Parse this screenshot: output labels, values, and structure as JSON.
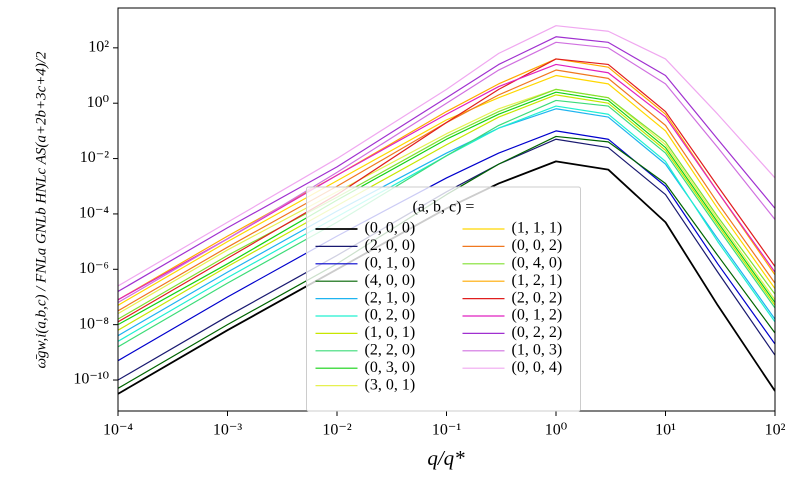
{
  "chart_data": {
    "type": "line",
    "xlabel": "q/q*",
    "ylabel": "ω̄gw,i(a,b,c) / FNLa GNLb HNLc AS(a+2b+3c+4)/2",
    "legend_title": "(a, b, c) =",
    "legend": "lower center",
    "xscale": "log",
    "yscale": "log",
    "xlim": [
      0.0001,
      100
    ],
    "ylim": [
      7.6e-12,
      2750
    ],
    "xticks": [
      {
        "value": 0.0001,
        "label": "10⁻⁴"
      },
      {
        "value": 0.001,
        "label": "10⁻³"
      },
      {
        "value": 0.01,
        "label": "10⁻²"
      },
      {
        "value": 0.1,
        "label": "10⁻¹"
      },
      {
        "value": 1,
        "label": "10⁰"
      },
      {
        "value": 10,
        "label": "10¹"
      },
      {
        "value": 100,
        "label": "10²"
      }
    ],
    "yticks": [
      {
        "value": 1e-10,
        "label": "10⁻¹⁰"
      },
      {
        "value": 1e-08,
        "label": "10⁻⁸"
      },
      {
        "value": 1e-06,
        "label": "10⁻⁶"
      },
      {
        "value": 0.0001,
        "label": "10⁻⁴"
      },
      {
        "value": 0.01,
        "label": "10⁻²"
      },
      {
        "value": 1,
        "label": "10⁰"
      },
      {
        "value": 100,
        "label": "10²"
      }
    ],
    "x": [
      0.0001,
      0.001,
      0.01,
      0.1,
      0.3,
      1,
      3,
      10,
      30,
      100
    ],
    "series": [
      {
        "name": "(0, 0, 0)",
        "color": "#000000",
        "values": [
          3.16e-11,
          6.3e-09,
          1e-06,
          0.000158,
          0.00126,
          0.0079,
          0.004,
          5e-05,
          5e-08,
          4e-11
        ]
      },
      {
        "name": "(2, 0, 0)",
        "color": "#191970",
        "values": [
          1e-10,
          2e-08,
          3.16e-06,
          0.00063,
          0.0063,
          0.05,
          0.025,
          0.0005,
          7.9e-07,
          7.9e-10
        ]
      },
      {
        "name": "(0, 1, 0)",
        "color": "#0000cd",
        "values": [
          5e-10,
          1e-07,
          1.58e-05,
          0.002,
          0.0158,
          0.1,
          0.05,
          0.001,
          1.58e-06,
          2e-09
        ]
      },
      {
        "name": "(4, 0, 0)",
        "color": "#006400",
        "values": [
          5e-11,
          1e-08,
          1.58e-06,
          0.0005,
          0.0063,
          0.063,
          0.04,
          0.00126,
          3.16e-06,
          5e-09
        ]
      },
      {
        "name": "(2, 1, 0)",
        "color": "#1eb4f0",
        "values": [
          4e-09,
          7.9e-07,
          0.000126,
          0.0158,
          0.126,
          0.63,
          0.316,
          0.0063,
          1.26e-05,
          1.58e-08
        ]
      },
      {
        "name": "(0, 2, 0)",
        "color": "#20f0d0",
        "values": [
          2.5e-09,
          5e-07,
          7.9e-05,
          0.0126,
          0.126,
          0.79,
          0.4,
          0.0079,
          1e-05,
          1.26e-08
        ]
      },
      {
        "name": "(1, 0, 1)",
        "color": "#c8e600",
        "values": [
          6.3e-09,
          1.26e-06,
          0.0002,
          0.0316,
          0.316,
          2,
          1,
          0.02,
          4e-05,
          5e-08
        ]
      },
      {
        "name": "(2, 2, 0)",
        "color": "#3cdc78",
        "values": [
          1.58e-09,
          3.16e-07,
          5e-05,
          0.0126,
          0.158,
          1.26,
          0.79,
          0.0158,
          3.16e-05,
          4e-08
        ]
      },
      {
        "name": "(0, 3, 0)",
        "color": "#14d214",
        "values": [
          1e-08,
          1.58e-06,
          0.000316,
          0.05,
          0.4,
          2.5,
          1.26,
          0.025,
          5e-05,
          6.3e-08
        ]
      },
      {
        "name": "(3, 0, 1)",
        "color": "#e6f050",
        "values": [
          2.5e-08,
          5e-06,
          0.00063,
          0.079,
          0.63,
          3.16,
          1.58,
          0.0316,
          6.3e-05,
          7.9e-08
        ]
      },
      {
        "name": "(1, 1, 1)",
        "color": "#ffd700",
        "values": [
          5e-08,
          1e-05,
          0.00158,
          0.25,
          1.58,
          10,
          5,
          0.1,
          0.000158,
          2e-07
        ]
      },
      {
        "name": "(0, 0, 2)",
        "color": "#f07820",
        "values": [
          3.16e-08,
          6.3e-06,
          0.001,
          0.2,
          2,
          15.8,
          7.9,
          0.158,
          0.00025,
          3.16e-07
        ]
      },
      {
        "name": "(0, 4, 0)",
        "color": "#80e030",
        "values": [
          1.58e-08,
          3.16e-06,
          0.0004,
          0.063,
          0.5,
          3.16,
          1.58,
          0.04,
          7.9e-05,
          1.26e-07
        ]
      },
      {
        "name": "(1, 2, 1)",
        "color": "#ffaa00",
        "values": [
          7.9e-08,
          1.58e-05,
          0.0025,
          0.5,
          5,
          39.8,
          20,
          0.4,
          0.00063,
          6.3e-07
        ]
      },
      {
        "name": "(2, 0, 2)",
        "color": "#e01e1e",
        "values": [
          1.26e-08,
          2.5e-06,
          0.0005,
          0.2,
          3.16,
          39.8,
          25.1,
          0.5,
          0.001,
          1.26e-06
        ]
      },
      {
        "name": "(0, 1, 2)",
        "color": "#e020c0",
        "values": [
          7.9e-08,
          1.26e-05,
          0.0025,
          0.4,
          4,
          25.1,
          12.6,
          0.316,
          0.00063,
          7.9e-07
        ]
      },
      {
        "name": "(0, 2, 2)",
        "color": "#a030d0",
        "values": [
          1.58e-07,
          3.16e-05,
          0.005,
          1.58,
          25.1,
          251,
          158,
          10,
          0.05,
          0.000158
        ]
      },
      {
        "name": "(1, 0, 3)",
        "color": "#d070e0",
        "values": [
          6.3e-08,
          1.26e-05,
          0.00316,
          1,
          15.8,
          158,
          100,
          5,
          0.025,
          6.3e-05
        ]
      },
      {
        "name": "(0, 0, 4)",
        "color": "#f0a8f0",
        "values": [
          2.5e-07,
          5e-05,
          0.01,
          3.16,
          63.1,
          631,
          398,
          39.8,
          0.4,
          0.002
        ]
      }
    ]
  }
}
